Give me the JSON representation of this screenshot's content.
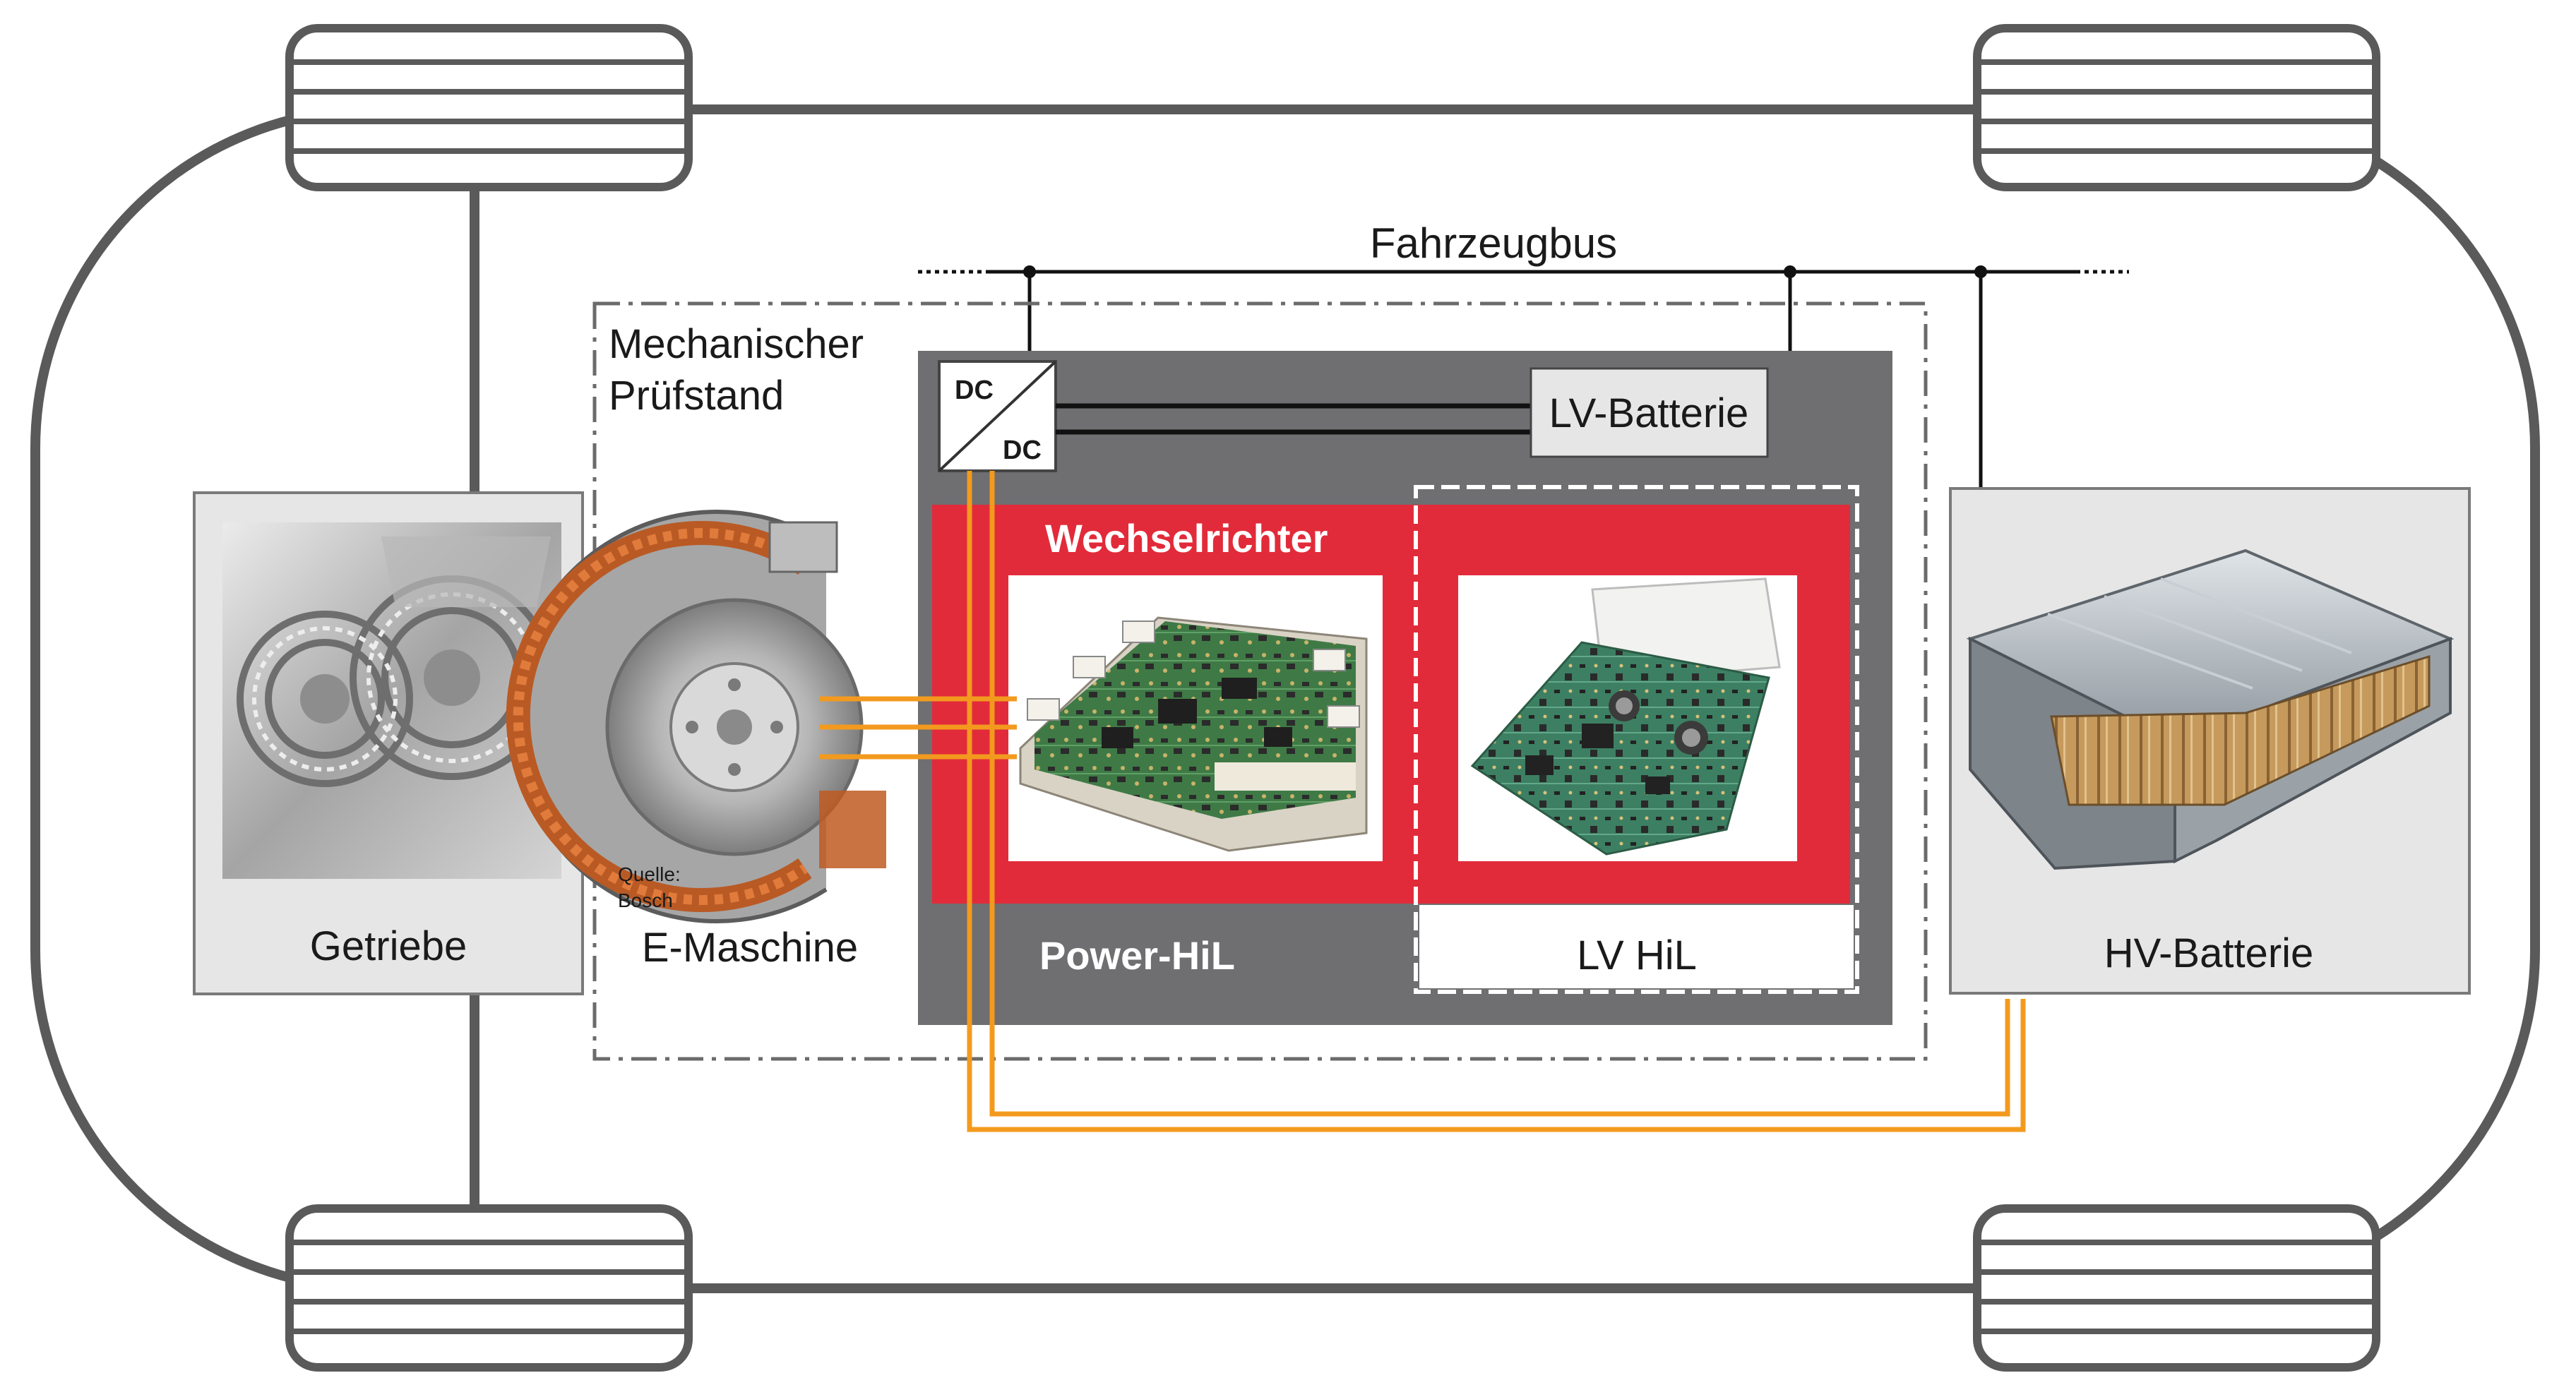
{
  "labels": {
    "bus": "Fahrzeugbus",
    "test_bench_line1": "Mechanischer",
    "test_bench_line2": "Prüfstand",
    "dc_top": "DC",
    "dc_bottom": "DC",
    "lv_battery": "LV-Batterie",
    "inverter": "Wechselrichter",
    "power_hil": "Power-HiL",
    "lv_hil": "LV HiL",
    "gearbox": "Getriebe",
    "e_machine": "E-Maschine",
    "source_line1": "Quelle:",
    "source_line2": "Bosch",
    "hv_battery": "HV-Batterie"
  },
  "colors": {
    "chassis": "#5a5a5a",
    "bus_line": "#111111",
    "hil_box": "#6f6e70",
    "inverter_red": "#e22b3a",
    "hv_orange": "#f39a1e",
    "panel_gray": "#e6e6e6"
  },
  "icons": {
    "gearbox": "gearbox-photo",
    "e_machine": "electric-motor-photo",
    "inverter": "igbt-module-photo",
    "lv_hil": "control-board-photo",
    "hv_battery": "battery-pack-photo"
  }
}
